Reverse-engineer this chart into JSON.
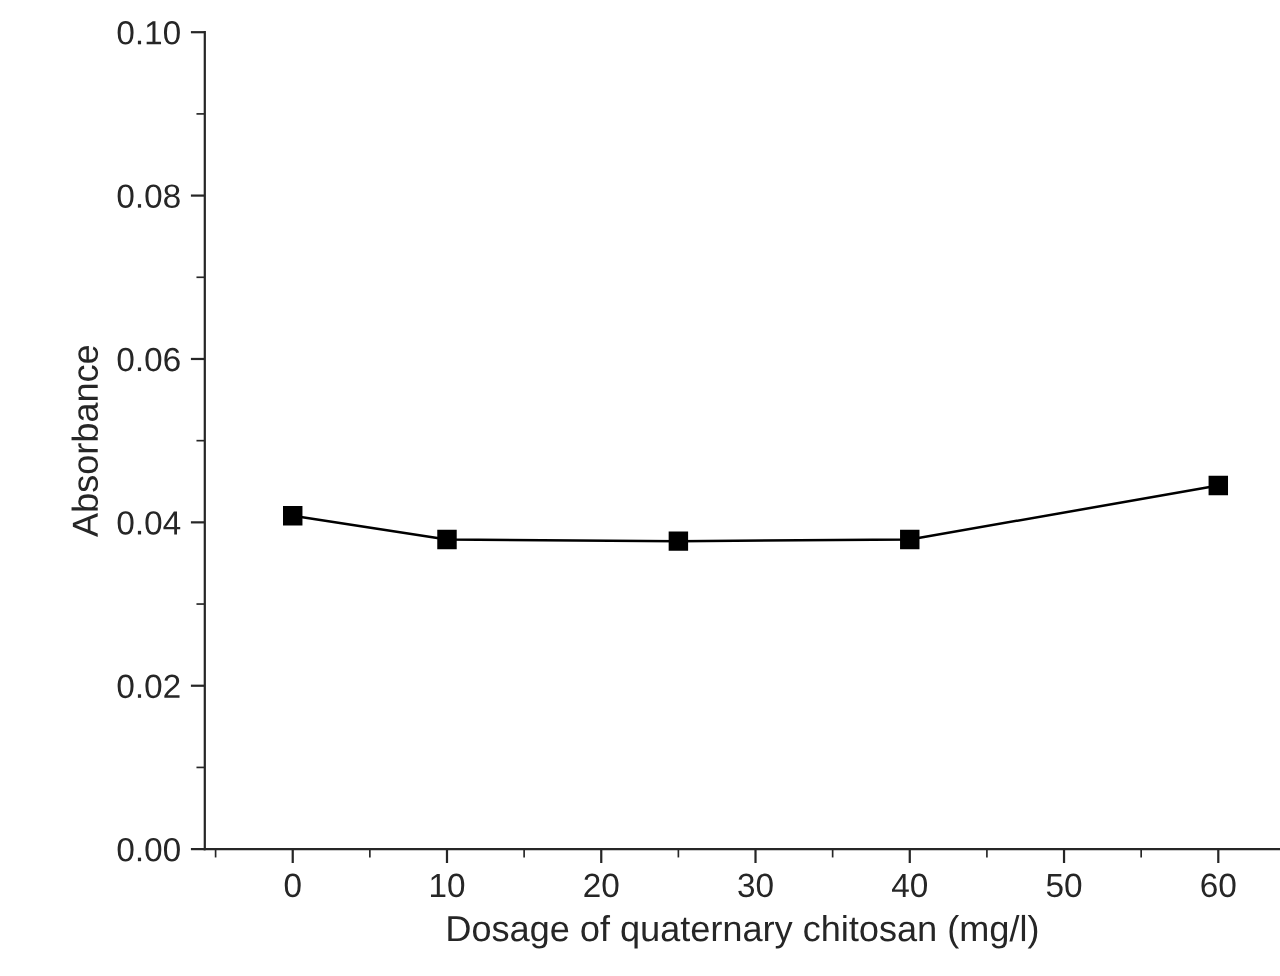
{
  "chart_data": {
    "type": "line",
    "xlabel": "Dosage of quaternary chitosan (mg/l)",
    "ylabel": "Absorbance",
    "x": [
      0,
      10,
      25,
      40,
      60
    ],
    "series": [
      {
        "color": "#000000",
        "values": [
          0.0408,
          0.0379,
          0.0377,
          0.0379,
          0.0445
        ]
      }
    ],
    "xlim": [
      -5.7,
      64
    ],
    "xticks": [
      0,
      10,
      20,
      30,
      40,
      50,
      60
    ],
    "ylim": [
      0,
      0.1
    ],
    "yticks": [
      {
        "value": 0,
        "label": "0.00"
      },
      {
        "value": 0.02,
        "label": "0.02"
      },
      {
        "value": 0.04,
        "label": "0.04"
      },
      {
        "value": 0.06,
        "label": "0.06"
      },
      {
        "value": 0.08,
        "label": "0.08"
      },
      {
        "value": 0.1,
        "label": "0.10"
      }
    ],
    "marker": "square",
    "line_style": "solid",
    "grid": false,
    "legend": false
  }
}
